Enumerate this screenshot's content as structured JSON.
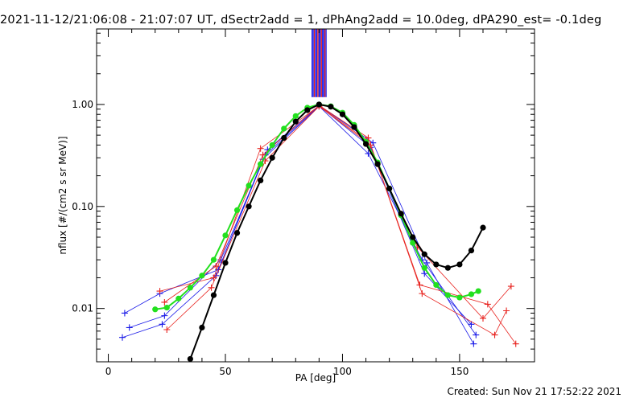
{
  "title": "2021-11-12/21:06:08 - 21:07:07 UT, dSectr2add = 1, dPhAng2add = 10.0deg, dPA290_est= -0.1deg",
  "footer": "Created: Sun Nov 21 17:52:22 2021",
  "chart_data": {
    "type": "line",
    "xlabel": "PA [deg]",
    "ylabel": "nflux [#/(cm2 s sr MeV)]",
    "xlim": [
      -5,
      182
    ],
    "ylim": [
      0.003,
      5.5
    ],
    "yscale": "log",
    "grid": false,
    "xticks": [
      0,
      50,
      100,
      150
    ],
    "xtick_labels": [
      "0",
      "50",
      "100",
      "150"
    ],
    "yticks": [
      0.01,
      0.1,
      1.0
    ],
    "ytick_labels": [
      "0.01",
      "0.10",
      "1.00"
    ],
    "colors": {
      "red": "#e8231f",
      "blue": "#1a1ae8",
      "green": "#22e01e",
      "black": "#000000"
    },
    "series": [
      {
        "color": "green",
        "marker": "circle",
        "x": [
          20,
          25,
          30,
          35,
          40,
          45,
          50,
          55,
          60,
          65,
          70,
          75,
          80,
          85,
          90,
          95,
          100,
          105,
          110,
          115,
          120,
          125,
          130,
          135,
          140,
          145,
          150,
          155,
          158
        ],
        "y": [
          0.0098,
          0.0102,
          0.0125,
          0.016,
          0.021,
          0.03,
          0.052,
          0.092,
          0.16,
          0.26,
          0.4,
          0.58,
          0.77,
          0.93,
          1.0,
          0.96,
          0.83,
          0.63,
          0.43,
          0.27,
          0.15,
          0.082,
          0.044,
          0.025,
          0.017,
          0.0135,
          0.0128,
          0.0138,
          0.0148
        ]
      },
      {
        "color": "black",
        "marker": "circle",
        "x": [
          35,
          40,
          45,
          50,
          55,
          60,
          65,
          70,
          75,
          80,
          85,
          90,
          95,
          100,
          105,
          110,
          115,
          120,
          125,
          130,
          135,
          140,
          145,
          150,
          155,
          160
        ],
        "y": [
          0.0032,
          0.0065,
          0.0135,
          0.028,
          0.055,
          0.1,
          0.18,
          0.3,
          0.47,
          0.68,
          0.88,
          1.0,
          0.95,
          0.8,
          0.6,
          0.41,
          0.26,
          0.15,
          0.085,
          0.05,
          0.034,
          0.027,
          0.025,
          0.027,
          0.037,
          0.062
        ]
      },
      {
        "color": "blue",
        "marker": "plus",
        "x": [
          7,
          22,
          47,
          67,
          90,
          112,
          135,
          155
        ],
        "y": [
          0.009,
          0.014,
          0.024,
          0.32,
          0.97,
          0.38,
          0.022,
          0.007
        ]
      },
      {
        "color": "blue",
        "marker": "plus",
        "x": [
          9,
          24,
          48,
          68,
          90,
          113,
          136,
          156
        ],
        "y": [
          0.0065,
          0.0085,
          0.03,
          0.36,
          0.98,
          0.42,
          0.028,
          0.0045
        ]
      },
      {
        "color": "blue",
        "marker": "plus",
        "x": [
          6,
          23,
          46,
          66,
          90,
          111,
          134,
          157
        ],
        "y": [
          0.0052,
          0.007,
          0.021,
          0.29,
          0.96,
          0.33,
          0.03,
          0.0055
        ]
      },
      {
        "color": "red",
        "marker": "plus",
        "x": [
          22,
          45,
          65,
          90,
          110,
          132,
          160,
          172
        ],
        "y": [
          0.0148,
          0.02,
          0.37,
          0.97,
          0.45,
          0.04,
          0.008,
          0.0165
        ]
      },
      {
        "color": "red",
        "marker": "plus",
        "x": [
          24,
          46,
          66,
          90,
          111,
          133,
          162,
          174
        ],
        "y": [
          0.0115,
          0.026,
          0.32,
          0.98,
          0.47,
          0.017,
          0.011,
          0.0045
        ]
      },
      {
        "color": "red",
        "marker": "plus",
        "x": [
          25,
          44,
          67,
          90,
          112,
          134,
          165,
          170
        ],
        "y": [
          0.0062,
          0.016,
          0.28,
          0.96,
          0.4,
          0.014,
          0.0055,
          0.0095
        ]
      }
    ],
    "top_bars": {
      "x": [
        87,
        87.5,
        88,
        88.5,
        89,
        89.5,
        90,
        90.5,
        91,
        91.5,
        92,
        92.5,
        93
      ],
      "y_bottom": 1.18,
      "colors": [
        "blue",
        "blue",
        "red",
        "blue",
        "blue",
        "red",
        "blue",
        "blue",
        "red",
        "blue",
        "blue",
        "red",
        "blue"
      ]
    }
  }
}
